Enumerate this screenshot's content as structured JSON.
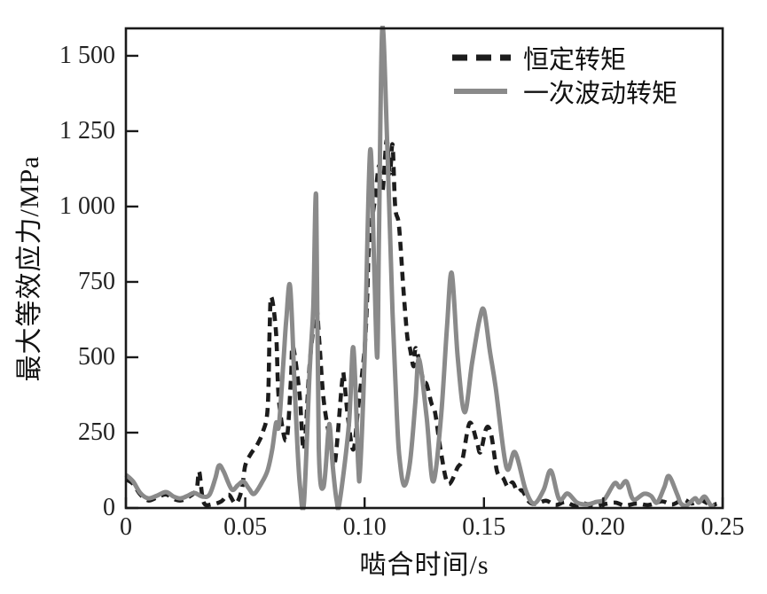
{
  "chart_data": {
    "type": "line",
    "title": "",
    "xlabel": "啮合时间/s",
    "ylabel": "最大等效应力/MPa",
    "xlim": [
      0,
      0.25
    ],
    "ylim": [
      0,
      1600
    ],
    "grid": false,
    "background": "#ffffff",
    "axis_color": "#1a1a1a",
    "legend_position": "top-right-inside",
    "xticks": {
      "values": [
        0,
        0.05,
        0.1,
        0.15,
        0.2,
        0.25
      ],
      "labels": [
        "0",
        "0.05",
        "0.10",
        "0.15",
        "0.20",
        "0.25"
      ]
    },
    "yticks": {
      "values": [
        0,
        250,
        500,
        750,
        1000,
        1250,
        1500
      ],
      "labels": [
        "0",
        "250",
        "500",
        "750",
        "1 000",
        "1 250",
        "1 500"
      ]
    },
    "series": [
      {
        "name": "恒定转矩",
        "style": "dashed",
        "color": "#1c1c1c",
        "points": [
          [
            0,
            95
          ],
          [
            0.003,
            80
          ],
          [
            0.006,
            45
          ],
          [
            0.0094,
            25
          ],
          [
            0.013,
            35
          ],
          [
            0.0168,
            45
          ],
          [
            0.02,
            30
          ],
          [
            0.023,
            25
          ],
          [
            0.026,
            35
          ],
          [
            0.0295,
            60
          ],
          [
            0.0307,
            121
          ],
          [
            0.0325,
            20
          ],
          [
            0.036,
            12
          ],
          [
            0.04,
            22
          ],
          [
            0.043,
            44
          ],
          [
            0.046,
            15
          ],
          [
            0.0485,
            60
          ],
          [
            0.05,
            141
          ],
          [
            0.0523,
            179
          ],
          [
            0.055,
            210
          ],
          [
            0.0574,
            253
          ],
          [
            0.0594,
            332
          ],
          [
            0.0602,
            591
          ],
          [
            0.0609,
            700
          ],
          [
            0.0629,
            582
          ],
          [
            0.0641,
            356
          ],
          [
            0.0672,
            224
          ],
          [
            0.0691,
            421
          ],
          [
            0.0699,
            538
          ],
          [
            0.0727,
            382
          ],
          [
            0.0746,
            194
          ],
          [
            0.077,
            479
          ],
          [
            0.0797,
            656
          ],
          [
            0.081,
            553
          ],
          [
            0.0828,
            362
          ],
          [
            0.0855,
            224
          ],
          [
            0.0875,
            147
          ],
          [
            0.0906,
            421
          ],
          [
            0.0914,
            429
          ],
          [
            0.093,
            300
          ],
          [
            0.0953,
            194
          ],
          [
            0.0973,
            332
          ],
          [
            0.1,
            529
          ],
          [
            0.1011,
            706
          ],
          [
            0.1018,
            862
          ],
          [
            0.1035,
            979
          ],
          [
            0.1046,
            1038
          ],
          [
            0.106,
            1135
          ],
          [
            0.1075,
            1050
          ],
          [
            0.1092,
            1220
          ],
          [
            0.1106,
            1110
          ],
          [
            0.1117,
            1205
          ],
          [
            0.1128,
            1000
          ],
          [
            0.1142,
            950
          ],
          [
            0.1152,
            853
          ],
          [
            0.116,
            753
          ],
          [
            0.117,
            647
          ],
          [
            0.118,
            559
          ],
          [
            0.119,
            530
          ],
          [
            0.1205,
            470
          ],
          [
            0.1215,
            530
          ],
          [
            0.1245,
            426
          ],
          [
            0.126,
            410
          ],
          [
            0.128,
            347
          ],
          [
            0.1295,
            318
          ],
          [
            0.132,
            185
          ],
          [
            0.135,
            80
          ],
          [
            0.139,
            135
          ],
          [
            0.141,
            162
          ],
          [
            0.144,
            282
          ],
          [
            0.147,
            221
          ],
          [
            0.1485,
            185
          ],
          [
            0.151,
            265
          ],
          [
            0.153,
            244
          ],
          [
            0.1555,
            121
          ],
          [
            0.158,
            100
          ],
          [
            0.16,
            70
          ],
          [
            0.162,
            85
          ],
          [
            0.164,
            55
          ],
          [
            0.166,
            58
          ],
          [
            0.169,
            20
          ],
          [
            0.172,
            14
          ],
          [
            0.176,
            24
          ],
          [
            0.18,
            10
          ],
          [
            0.184,
            20
          ],
          [
            0.188,
            8
          ],
          [
            0.192,
            15
          ],
          [
            0.196,
            6
          ],
          [
            0.2,
            12
          ],
          [
            0.205,
            18
          ],
          [
            0.209,
            8
          ],
          [
            0.214,
            15
          ],
          [
            0.219,
            10
          ],
          [
            0.2245,
            22
          ],
          [
            0.229,
            12
          ],
          [
            0.2335,
            28
          ],
          [
            0.237,
            15
          ],
          [
            0.241,
            25
          ],
          [
            0.245,
            10
          ],
          [
            0.2475,
            14
          ]
        ]
      },
      {
        "name": "一次波动转矩",
        "style": "solid",
        "color": "#8a8a8a",
        "points": [
          [
            0,
            110
          ],
          [
            0.003,
            88
          ],
          [
            0.006,
            50
          ],
          [
            0.0094,
            32
          ],
          [
            0.013,
            41
          ],
          [
            0.0168,
            53
          ],
          [
            0.02,
            38
          ],
          [
            0.023,
            32
          ],
          [
            0.026,
            41
          ],
          [
            0.0287,
            50
          ],
          [
            0.032,
            38
          ],
          [
            0.035,
            44
          ],
          [
            0.0375,
            100
          ],
          [
            0.039,
            141
          ],
          [
            0.041,
            120
          ],
          [
            0.0443,
            62
          ],
          [
            0.0468,
            75
          ],
          [
            0.0492,
            88
          ],
          [
            0.0515,
            65
          ],
          [
            0.0537,
            47
          ],
          [
            0.057,
            85
          ],
          [
            0.0594,
            126
          ],
          [
            0.0613,
            194
          ],
          [
            0.0629,
            282
          ],
          [
            0.0641,
            274
          ],
          [
            0.066,
            488
          ],
          [
            0.0672,
            626
          ],
          [
            0.0688,
            735
          ],
          [
            0.0707,
            400
          ],
          [
            0.0719,
            194
          ],
          [
            0.073,
            68
          ],
          [
            0.0746,
            18
          ],
          [
            0.077,
            459
          ],
          [
            0.0785,
            665
          ],
          [
            0.0797,
            1032
          ],
          [
            0.0808,
            200
          ],
          [
            0.0828,
            70
          ],
          [
            0.0848,
            253
          ],
          [
            0.0855,
            265
          ],
          [
            0.0867,
            135
          ],
          [
            0.0883,
            24
          ],
          [
            0.0895,
            18
          ],
          [
            0.0934,
            274
          ],
          [
            0.0953,
            532
          ],
          [
            0.0973,
            147
          ],
          [
            0.0981,
            126
          ],
          [
            0.1,
            500
          ],
          [
            0.1023,
            1185
          ],
          [
            0.104,
            800
          ],
          [
            0.1053,
            500
          ],
          [
            0.106,
            900
          ],
          [
            0.1074,
            1591
          ],
          [
            0.1095,
            1200
          ],
          [
            0.1117,
            647
          ],
          [
            0.1135,
            312
          ],
          [
            0.1145,
            176
          ],
          [
            0.1165,
            75
          ],
          [
            0.119,
            150
          ],
          [
            0.1213,
            353
          ],
          [
            0.1228,
            494
          ],
          [
            0.126,
            300
          ],
          [
            0.1287,
            88
          ],
          [
            0.132,
            300
          ],
          [
            0.1345,
            600
          ],
          [
            0.1365,
            779
          ],
          [
            0.139,
            500
          ],
          [
            0.1419,
            318
          ],
          [
            0.145,
            480
          ],
          [
            0.148,
            620
          ],
          [
            0.15,
            656
          ],
          [
            0.1525,
            520
          ],
          [
            0.1549,
            400
          ],
          [
            0.1594,
            135
          ],
          [
            0.163,
            185
          ],
          [
            0.1675,
            59
          ],
          [
            0.171,
            15
          ],
          [
            0.175,
            60
          ],
          [
            0.178,
            124
          ],
          [
            0.1815,
            29
          ],
          [
            0.185,
            48
          ],
          [
            0.189,
            18
          ],
          [
            0.193,
            12
          ],
          [
            0.197,
            20
          ],
          [
            0.2005,
            29
          ],
          [
            0.2047,
            82
          ],
          [
            0.207,
            68
          ],
          [
            0.2097,
            88
          ],
          [
            0.2125,
            29
          ],
          [
            0.217,
            47
          ],
          [
            0.22,
            40
          ],
          [
            0.2225,
            18
          ],
          [
            0.2255,
            68
          ],
          [
            0.2275,
            106
          ],
          [
            0.231,
            44
          ],
          [
            0.2325,
            15
          ],
          [
            0.235,
            9
          ],
          [
            0.2384,
            32
          ],
          [
            0.24,
            18
          ],
          [
            0.2424,
            38
          ],
          [
            0.245,
            9
          ],
          [
            0.2465,
            9
          ]
        ]
      }
    ]
  }
}
